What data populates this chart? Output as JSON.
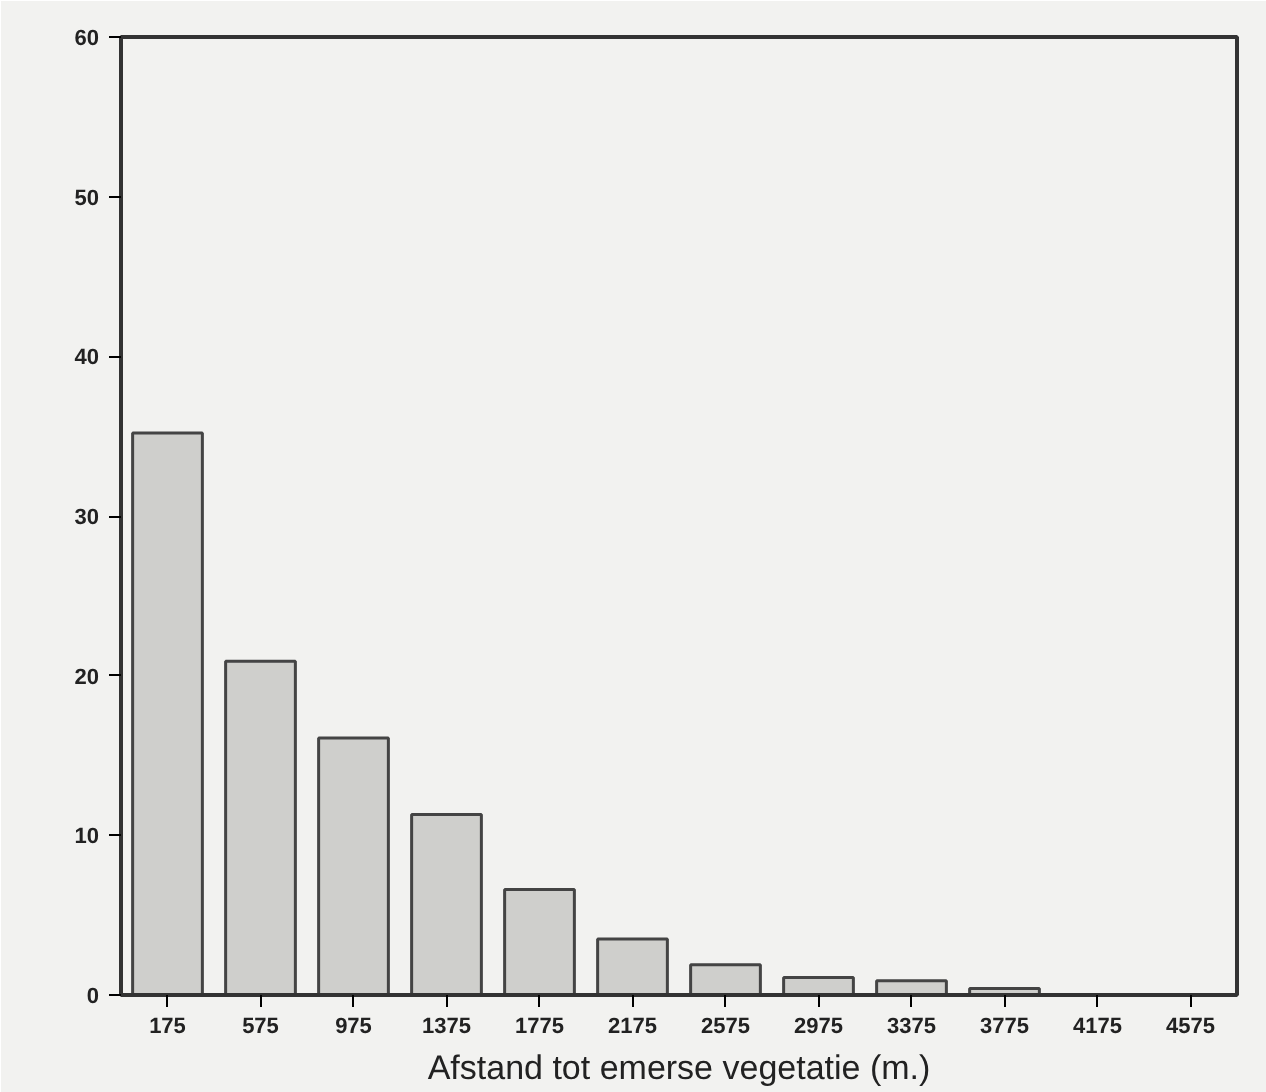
{
  "chart_data": {
    "type": "bar",
    "xlabel": "Afstand tot emerse vegetatie (m.)",
    "categories": [
      "175",
      "575",
      "975",
      "1375",
      "1775",
      "2175",
      "2575",
      "2975",
      "3375",
      "3775",
      "4175",
      "4575"
    ],
    "values": [
      35.2,
      20.9,
      16.1,
      11.3,
      6.6,
      3.5,
      1.9,
      1.1,
      0.9,
      0.4,
      0,
      0
    ],
    "color": "#cfcfcc",
    "ylim": [
      0,
      60
    ],
    "yticks": [
      0,
      10,
      20,
      30,
      40,
      50,
      60
    ],
    "grid": false
  }
}
